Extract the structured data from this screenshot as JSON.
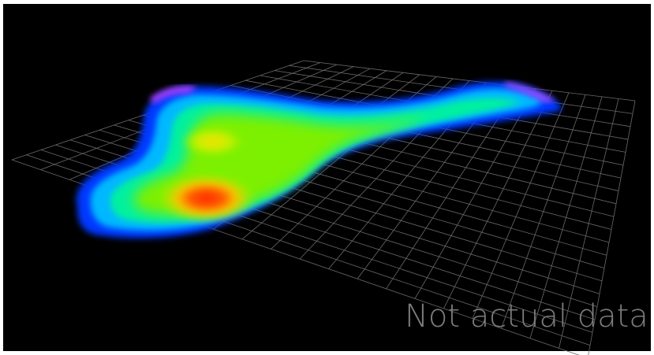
{
  "watermark": "Not actual data"
}
